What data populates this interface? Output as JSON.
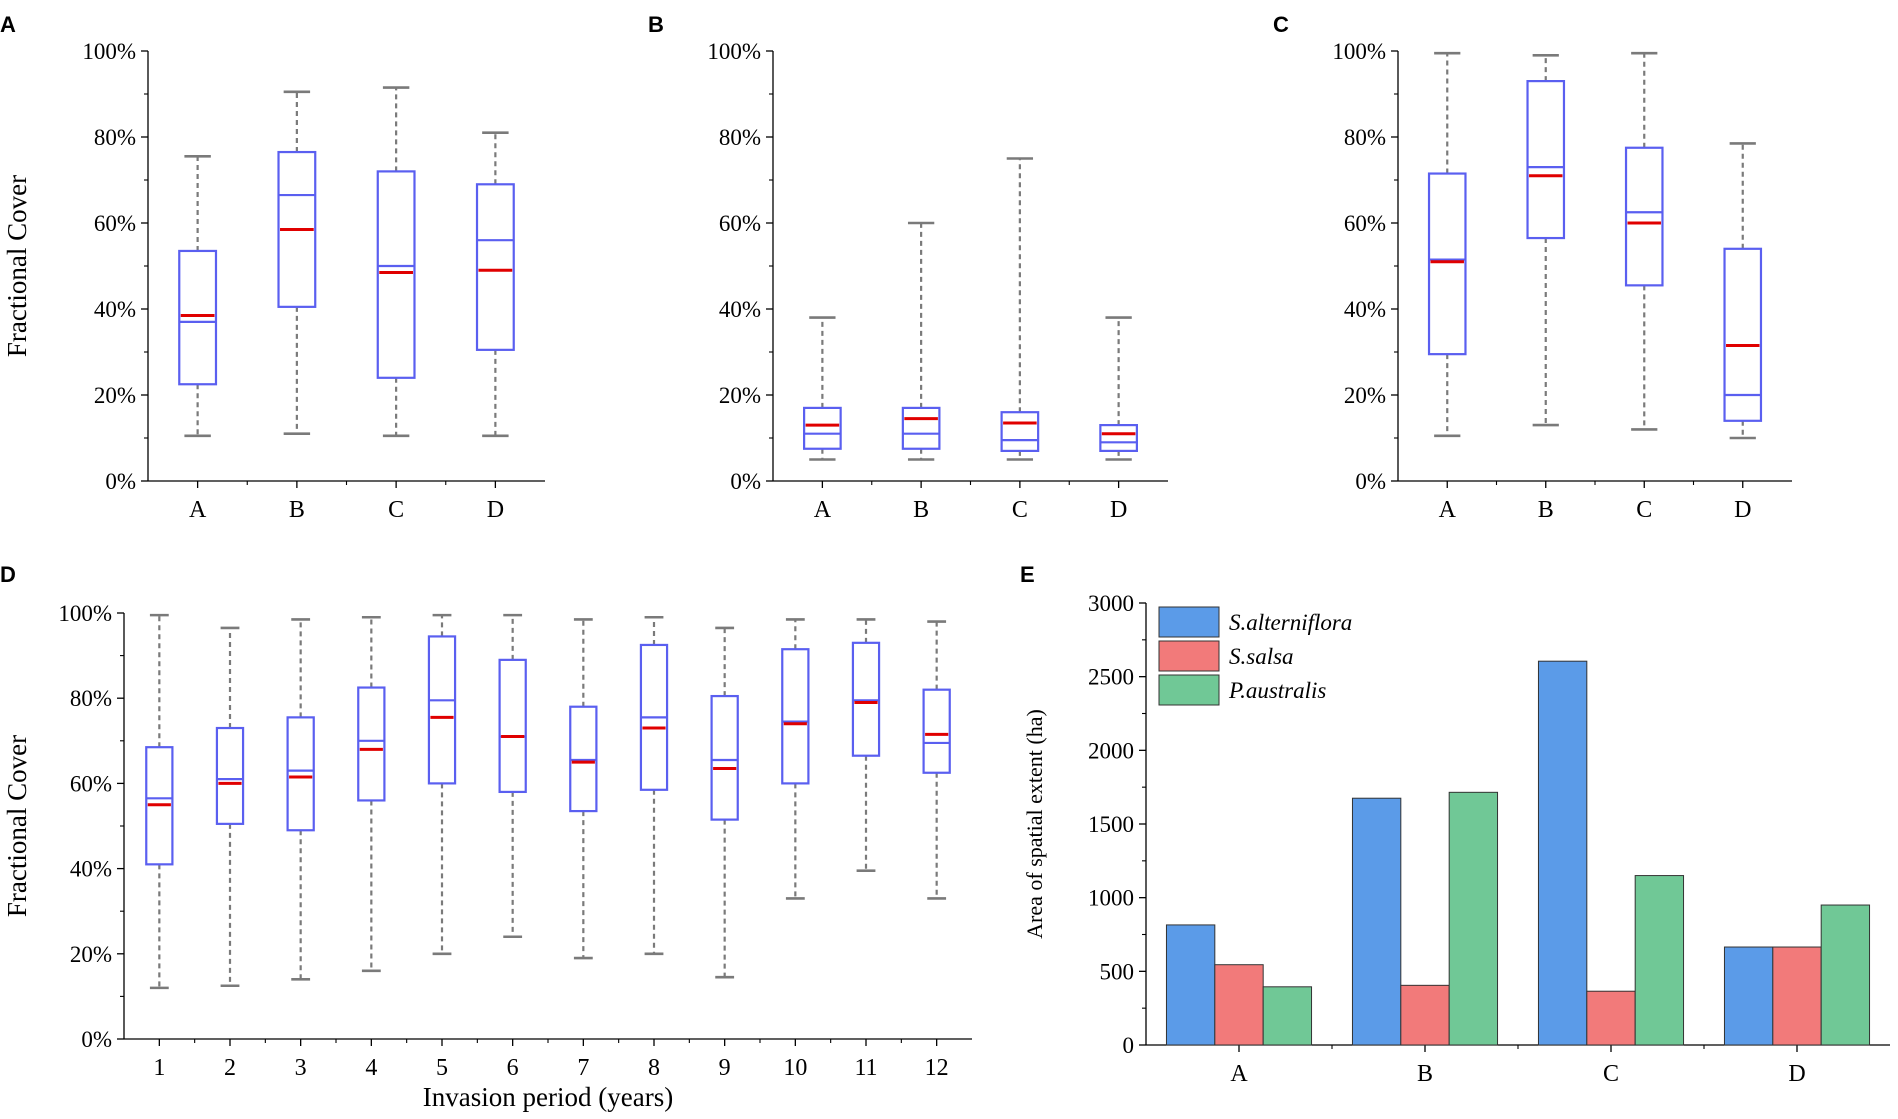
{
  "chart_data": [
    {
      "panel": "A",
      "type": "box",
      "title": "",
      "xlabel": "",
      "ylabel": "Fractional Cover",
      "ylim": [
        0,
        100
      ],
      "yticks": [
        0,
        20,
        40,
        60,
        80,
        100
      ],
      "ytick_labels": [
        "0%",
        "20%",
        "40%",
        "60%",
        "80%",
        "100%"
      ],
      "categories": [
        "A",
        "B",
        "C",
        "D"
      ],
      "boxes": [
        {
          "min": 10.5,
          "q1": 22.5,
          "median": 37,
          "mean": 38.5,
          "q3": 53.5,
          "max": 75.5
        },
        {
          "min": 11,
          "q1": 40.5,
          "median": 66.5,
          "mean": 58.5,
          "q3": 76.5,
          "max": 90.5
        },
        {
          "min": 10.5,
          "q1": 24,
          "median": 50,
          "mean": 48.5,
          "q3": 72,
          "max": 91.5
        },
        {
          "min": 10.5,
          "q1": 30.5,
          "median": 56,
          "mean": 49,
          "q3": 69,
          "max": 81
        }
      ]
    },
    {
      "panel": "B",
      "type": "box",
      "title": "",
      "xlabel": "",
      "ylabel": "",
      "ylim": [
        0,
        100
      ],
      "yticks": [
        0,
        20,
        40,
        60,
        80,
        100
      ],
      "ytick_labels": [
        "0%",
        "20%",
        "40%",
        "60%",
        "80%",
        "100%"
      ],
      "categories": [
        "A",
        "B",
        "C",
        "D"
      ],
      "boxes": [
        {
          "min": 5,
          "q1": 7.5,
          "median": 11,
          "mean": 13,
          "q3": 17,
          "max": 38
        },
        {
          "min": 5,
          "q1": 7.5,
          "median": 11,
          "mean": 14.5,
          "q3": 17,
          "max": 60
        },
        {
          "min": 5,
          "q1": 7,
          "median": 9.5,
          "mean": 13.5,
          "q3": 16,
          "max": 75
        },
        {
          "min": 5,
          "q1": 7,
          "median": 9,
          "mean": 11,
          "q3": 13,
          "max": 38
        }
      ]
    },
    {
      "panel": "C",
      "type": "box",
      "title": "",
      "xlabel": "",
      "ylabel": "",
      "ylim": [
        0,
        100
      ],
      "yticks": [
        0,
        20,
        40,
        60,
        80,
        100
      ],
      "ytick_labels": [
        "0%",
        "20%",
        "40%",
        "60%",
        "80%",
        "100%"
      ],
      "categories": [
        "A",
        "B",
        "C",
        "D"
      ],
      "boxes": [
        {
          "min": 10.5,
          "q1": 29.5,
          "median": 51.5,
          "mean": 51,
          "q3": 71.5,
          "max": 99.5
        },
        {
          "min": 13,
          "q1": 56.5,
          "median": 73,
          "mean": 71,
          "q3": 93,
          "max": 99
        },
        {
          "min": 12,
          "q1": 45.5,
          "median": 62.5,
          "mean": 60,
          "q3": 77.5,
          "max": 99.5
        },
        {
          "min": 10,
          "q1": 14,
          "median": 20,
          "mean": 31.5,
          "q3": 54,
          "max": 78.5
        }
      ]
    },
    {
      "panel": "D",
      "type": "box",
      "title": "",
      "xlabel": "Invasion period (years)",
      "ylabel": "Fractional  Cover",
      "ylim": [
        0,
        100
      ],
      "yticks": [
        0,
        20,
        40,
        60,
        80,
        100
      ],
      "ytick_labels": [
        "0%",
        "20%",
        "40%",
        "60%",
        "80%",
        "100%"
      ],
      "categories": [
        "1",
        "2",
        "3",
        "4",
        "5",
        "6",
        "7",
        "8",
        "9",
        "10",
        "11",
        "12"
      ],
      "boxes": [
        {
          "min": 12,
          "q1": 41,
          "median": 56.5,
          "mean": 55,
          "q3": 68.5,
          "max": 99.5
        },
        {
          "min": 12.5,
          "q1": 50.5,
          "median": 61,
          "mean": 60,
          "q3": 73,
          "max": 96.5
        },
        {
          "min": 14,
          "q1": 49,
          "median": 63,
          "mean": 61.5,
          "q3": 75.5,
          "max": 98.5
        },
        {
          "min": 16,
          "q1": 56,
          "median": 70,
          "mean": 68,
          "q3": 82.5,
          "max": 99
        },
        {
          "min": 20,
          "q1": 60,
          "median": 79.5,
          "mean": 75.5,
          "q3": 94.5,
          "max": 99.5
        },
        {
          "min": 24,
          "q1": 58,
          "median": 71,
          "mean": 71,
          "q3": 89,
          "max": 99.5
        },
        {
          "min": 19,
          "q1": 53.5,
          "median": 65.5,
          "mean": 65,
          "q3": 78,
          "max": 98.5
        },
        {
          "min": 20,
          "q1": 58.5,
          "median": 75.5,
          "mean": 73,
          "q3": 92.5,
          "max": 99
        },
        {
          "min": 14.5,
          "q1": 51.5,
          "median": 65.5,
          "mean": 63.5,
          "q3": 80.5,
          "max": 96.5
        },
        {
          "min": 33,
          "q1": 60,
          "median": 74.5,
          "mean": 74,
          "q3": 91.5,
          "max": 98.5
        },
        {
          "min": 39.5,
          "q1": 66.5,
          "median": 79.5,
          "mean": 79,
          "q3": 93,
          "max": 98.5
        },
        {
          "min": 33,
          "q1": 62.5,
          "median": 69.5,
          "mean": 71.5,
          "q3": 82,
          "max": 98
        }
      ]
    },
    {
      "panel": "E",
      "type": "bar",
      "title": "",
      "xlabel": "",
      "ylabel": "Area of spatial extent (ha)",
      "ylim": [
        0,
        3000
      ],
      "yticks": [
        0,
        500,
        1000,
        1500,
        2000,
        2500,
        3000
      ],
      "ytick_labels": [
        "0",
        "500",
        "1000",
        "1500",
        "2000",
        "2500",
        "3000"
      ],
      "categories": [
        "A",
        "B",
        "C",
        "D"
      ],
      "legend_position": "top-left",
      "series": [
        {
          "name": "S.alterniflora",
          "color": "#5b9be8",
          "values": [
            815,
            1675,
            2605,
            665
          ]
        },
        {
          "name": "S.salsa",
          "color": "#f27a7a",
          "values": [
            545,
            405,
            365,
            665
          ]
        },
        {
          "name": "P.australis",
          "color": "#70c896",
          "values": [
            395,
            1715,
            1150,
            950
          ]
        }
      ]
    }
  ],
  "colors": {
    "box": "#5a5ff0",
    "mean_line": "#e00000",
    "whisker": "#7a7a7a",
    "axis": "#000000"
  }
}
